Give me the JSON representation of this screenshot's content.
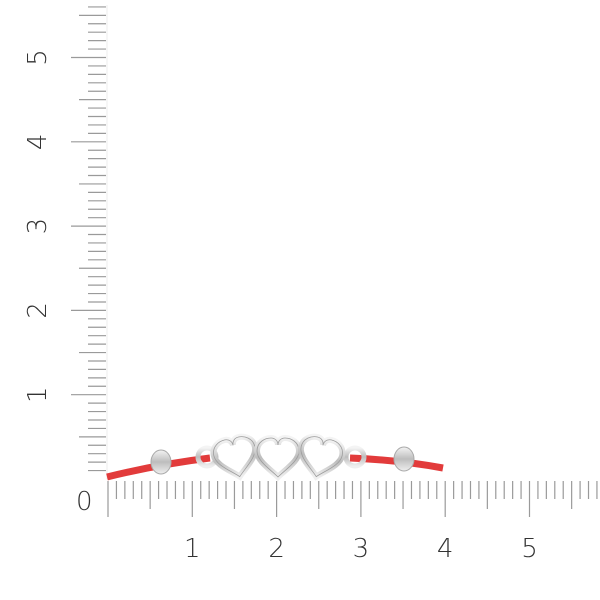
{
  "ruler": {
    "zero_label": "0",
    "x_labels": [
      "1",
      "2",
      "3",
      "4",
      "5"
    ],
    "y_labels": [
      "1",
      "2",
      "3",
      "4",
      "5"
    ],
    "tick_color": "#9a9a9a"
  },
  "product": {
    "cord_color": "#e23b3b",
    "metal_color": "#d9d9d9",
    "hearts": 3,
    "beads": 2
  }
}
